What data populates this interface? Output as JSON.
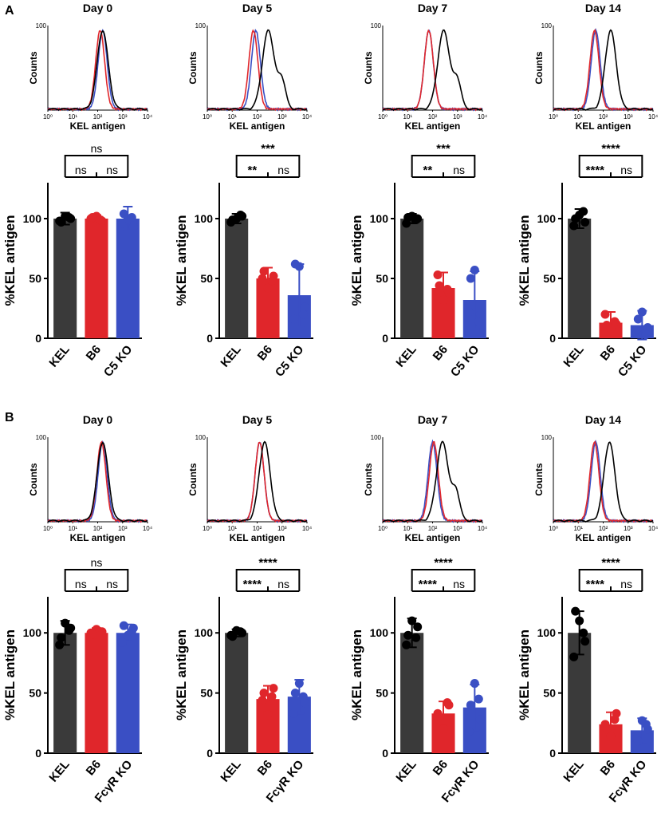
{
  "panel_labels": [
    "A",
    "B"
  ],
  "chart_data": [
    {
      "type": "histogram-row",
      "panel": "A",
      "xlabel": "KEL antigen",
      "ylabel": "Counts",
      "ytick_max": "100",
      "xticks": [
        "10⁰",
        "10¹",
        "10²",
        "10³",
        "10⁴"
      ],
      "xlog_range": [
        0,
        4
      ],
      "colors": {
        "KEL": "#000000",
        "B6": "#e0262b",
        "KO": "#3a4fc4"
      },
      "plots": [
        {
          "title": "Day 0",
          "peaks": {
            "KEL": 2.2,
            "B6": 2.1,
            "KO": 2.2
          }
        },
        {
          "title": "Day 5",
          "peaks": {
            "KEL": 2.45,
            "B6": 1.85,
            "KO": 1.95
          }
        },
        {
          "title": "Day 7",
          "peaks": {
            "KEL": 2.45,
            "B6": 1.85,
            "KO": 1.85
          }
        },
        {
          "title": "Day  14",
          "peaks": {
            "KEL": 2.3,
            "B6": 1.65,
            "KO": 1.7
          }
        }
      ]
    },
    {
      "type": "bar-row",
      "panel": "A",
      "ylabel": "%KEL antigen",
      "ylim": [
        0,
        130
      ],
      "yticks": [
        0,
        50,
        100
      ],
      "categories": [
        "KEL",
        "B6",
        "C5 KO"
      ],
      "colors": [
        "#3a3a3a",
        "#e0262b",
        "#3a4fc4"
      ],
      "plots": [
        {
          "values": [
            100,
            100,
            100
          ],
          "errors": [
            5,
            3,
            10
          ],
          "points": [
            [
              98,
              100,
              102,
              97,
              101
            ],
            [
              100,
              98,
              102,
              101,
              99
            ],
            [
              96,
              93,
              100,
              104,
              101
            ]
          ],
          "sig": {
            "outer": "ns",
            "left": "ns",
            "right": "ns"
          }
        },
        {
          "values": [
            100,
            50,
            36
          ],
          "errors": [
            4,
            9,
            26
          ],
          "points": [
            [
              97,
              102,
              100,
              99,
              103
            ],
            [
              50,
              52,
              42,
              56,
              48
            ],
            [
              16,
              26,
              60,
              62,
              20
            ]
          ],
          "sig": {
            "outer": "***",
            "left": "**",
            "right": "ns"
          }
        },
        {
          "values": [
            100,
            42,
            32
          ],
          "errors": [
            4,
            13,
            24
          ],
          "points": [
            [
              96,
              100,
              102,
              101,
              99
            ],
            [
              53,
              38,
              32,
              44,
              41
            ],
            [
              22,
              20,
              57,
              50,
              14
            ]
          ],
          "sig": {
            "outer": "***",
            "left": "**",
            "right": "ns"
          }
        },
        {
          "values": [
            100,
            13,
            11
          ],
          "errors": [
            8,
            9,
            12
          ],
          "points": [
            [
              94,
              97,
              103,
              100,
              106
            ],
            [
              20,
              12,
              8,
              11,
              14
            ],
            [
              7,
              9,
              22,
              16,
              3
            ]
          ],
          "sig": {
            "outer": "****",
            "left": "****",
            "right": "ns"
          }
        }
      ]
    },
    {
      "type": "histogram-row",
      "panel": "B",
      "xlabel": "KEL antigen",
      "ylabel": "Counts",
      "ytick_max": "100",
      "xticks": [
        "10⁰",
        "10¹",
        "10²",
        "10³",
        "10⁴"
      ],
      "xlog_range": [
        0,
        4
      ],
      "colors": {
        "KEL": "#000000",
        "B6": "#e0262b",
        "KO": "#3a4fc4"
      },
      "plots": [
        {
          "title": "Day 0",
          "peaks": {
            "KEL": 2.2,
            "B6": 2.15,
            "KO": 2.2
          }
        },
        {
          "title": "Day 5",
          "peaks": {
            "KEL": 2.3,
            "B6": 2.1,
            "KO": 2.1
          }
        },
        {
          "title": "Day 7",
          "peaks": {
            "KEL": 2.4,
            "B6": 2.05,
            "KO": 2.0
          }
        },
        {
          "title": "Day  14",
          "peaks": {
            "KEL": 2.25,
            "B6": 1.65,
            "KO": 1.7
          }
        }
      ]
    },
    {
      "type": "bar-row",
      "panel": "B",
      "ylabel": "%KEL antigen",
      "ylim": [
        0,
        130
      ],
      "yticks": [
        0,
        50,
        100
      ],
      "categories": [
        "KEL",
        "B6",
        "FcγR KO"
      ],
      "colors": [
        "#3a3a3a",
        "#e0262b",
        "#3a4fc4"
      ],
      "plots": [
        {
          "values": [
            100,
            100,
            100
          ],
          "errors": [
            10,
            4,
            7
          ],
          "points": [
            [
              90,
              104,
              108,
              96,
              102
            ],
            [
              100,
              101,
              103,
              99,
              98
            ],
            [
              92,
              104,
              98,
              106,
              101
            ]
          ],
          "sig": {
            "outer": "ns",
            "left": "ns",
            "right": "ns"
          }
        },
        {
          "values": [
            100,
            45,
            47
          ],
          "errors": [
            3,
            11,
            14
          ],
          "points": [
            [
              98,
              100,
              102,
              97,
              101
            ],
            [
              44,
              54,
              32,
              50,
              47
            ],
            [
              33,
              42,
              58,
              50,
              47
            ]
          ],
          "sig": {
            "outer": "****",
            "left": "****",
            "right": "ns"
          }
        },
        {
          "values": [
            100,
            33,
            38
          ],
          "errors": [
            12,
            10,
            19
          ],
          "points": [
            [
              90,
              105,
              110,
              98,
              96
            ],
            [
              33,
              40,
              20,
              30,
              42
            ],
            [
              18,
              28,
              58,
              40,
              45
            ]
          ],
          "sig": {
            "outer": "****",
            "left": "****",
            "right": "ns"
          }
        },
        {
          "values": [
            100,
            24,
            19
          ],
          "errors": [
            18,
            10,
            10
          ],
          "points": [
            [
              80,
              93,
              110,
              118,
              100
            ],
            [
              24,
              33,
              14,
              20,
              28
            ],
            [
              12,
              20,
              27,
              10,
              24
            ]
          ],
          "sig": {
            "outer": "****",
            "left": "****",
            "right": "ns"
          }
        }
      ]
    }
  ]
}
